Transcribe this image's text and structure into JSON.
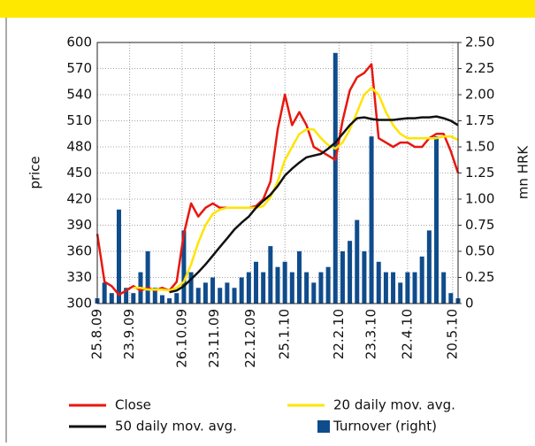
{
  "chart_data": {
    "type": "line",
    "x": [
      0,
      4,
      8,
      12,
      16,
      20,
      24,
      28,
      32,
      36,
      40,
      44,
      48,
      52,
      56,
      60,
      64,
      68,
      72,
      76,
      80,
      84,
      88,
      92,
      96,
      100,
      104,
      108,
      112,
      116,
      120,
      124,
      128,
      132,
      136,
      140,
      144,
      148,
      152,
      156,
      160,
      164,
      168,
      172,
      176,
      180,
      184,
      188,
      192,
      196,
      200
    ],
    "xlim": [
      0,
      200
    ],
    "xticks": [
      {
        "value": 0,
        "label": "25.8.09"
      },
      {
        "value": 18,
        "label": "23.9.09"
      },
      {
        "value": 47,
        "label": "26.10.09"
      },
      {
        "value": 65,
        "label": "23.11.09"
      },
      {
        "value": 85,
        "label": "22.12.09"
      },
      {
        "value": 104,
        "label": "25.1.10"
      },
      {
        "value": 134,
        "label": "22.2.10"
      },
      {
        "value": 152,
        "label": "23.3.10"
      },
      {
        "value": 172,
        "label": "22.4.10"
      },
      {
        "value": 197,
        "label": "20.5.10"
      }
    ],
    "ylabel": "price",
    "y2label": "mn HRK",
    "ylim": [
      300,
      600
    ],
    "yticks": [
      300,
      330,
      360,
      390,
      420,
      450,
      480,
      510,
      540,
      570,
      600
    ],
    "y2lim": [
      0,
      2.5
    ],
    "y2ticks": [
      0,
      {
        "value": 0.25,
        "label": "0.25"
      },
      {
        "value": 0.5,
        "label": "0.50"
      },
      {
        "value": 0.75,
        "label": "0.75"
      },
      {
        "value": 1,
        "label": "1.00"
      },
      {
        "value": 1.25,
        "label": "1.25"
      },
      {
        "value": 1.5,
        "label": "1.50"
      },
      {
        "value": 1.75,
        "label": "1.75"
      },
      {
        "value": 2,
        "label": "2.00"
      },
      {
        "value": 2.25,
        "label": "2.25"
      },
      {
        "value": 2.5,
        "label": "2.50"
      }
    ],
    "grid": true,
    "series": [
      {
        "name": "Close",
        "color": "#e8170f",
        "values": [
          380,
          325,
          320,
          310,
          315,
          320,
          315,
          318,
          315,
          318,
          315,
          325,
          380,
          415,
          400,
          410,
          415,
          410,
          410,
          410,
          410,
          410,
          412,
          420,
          440,
          500,
          540,
          505,
          520,
          505,
          480,
          475,
          470,
          465,
          510,
          545,
          560,
          565,
          575,
          490,
          485,
          480,
          485,
          485,
          480,
          480,
          490,
          495,
          495,
          475,
          450
        ]
      },
      {
        "name": "20 daily mov. avg.",
        "color": "#ffe400",
        "values": [
          null,
          null,
          null,
          null,
          null,
          318,
          318,
          316,
          316,
          316,
          315,
          318,
          325,
          345,
          370,
          390,
          403,
          408,
          410,
          410,
          410,
          410,
          410,
          412,
          422,
          440,
          465,
          480,
          495,
          500,
          500,
          490,
          482,
          478,
          485,
          500,
          520,
          540,
          548,
          540,
          520,
          505,
          495,
          490,
          490,
          490,
          490,
          490,
          492,
          492,
          488
        ]
      },
      {
        "name": "50 daily mov. avg.",
        "color": "#111111",
        "values": [
          null,
          null,
          null,
          null,
          null,
          null,
          null,
          null,
          null,
          null,
          313,
          315,
          320,
          328,
          336,
          345,
          355,
          365,
          375,
          385,
          393,
          400,
          410,
          418,
          425,
          435,
          447,
          455,
          462,
          468,
          470,
          472,
          478,
          485,
          495,
          505,
          513,
          514,
          512,
          511,
          511,
          511,
          512,
          513,
          513,
          514,
          514,
          515,
          513,
          510,
          505
        ]
      },
      {
        "name": "Turnover (right)",
        "type": "bar",
        "axis": "y2",
        "color": "#0f4c8c",
        "values": [
          0.05,
          0.2,
          0.1,
          0.9,
          0.15,
          0.1,
          0.3,
          0.5,
          0.15,
          0.08,
          0.05,
          0.1,
          0.7,
          0.3,
          0.15,
          0.2,
          0.25,
          0.15,
          0.2,
          0.15,
          0.25,
          0.3,
          0.4,
          0.3,
          0.55,
          0.35,
          0.4,
          0.3,
          0.5,
          0.3,
          0.2,
          0.3,
          0.35,
          2.4,
          0.5,
          0.6,
          0.8,
          0.5,
          1.6,
          0.4,
          0.3,
          0.3,
          0.2,
          0.3,
          0.3,
          0.45,
          0.7,
          1.6,
          0.3,
          0.1,
          0.05
        ]
      }
    ]
  }
}
